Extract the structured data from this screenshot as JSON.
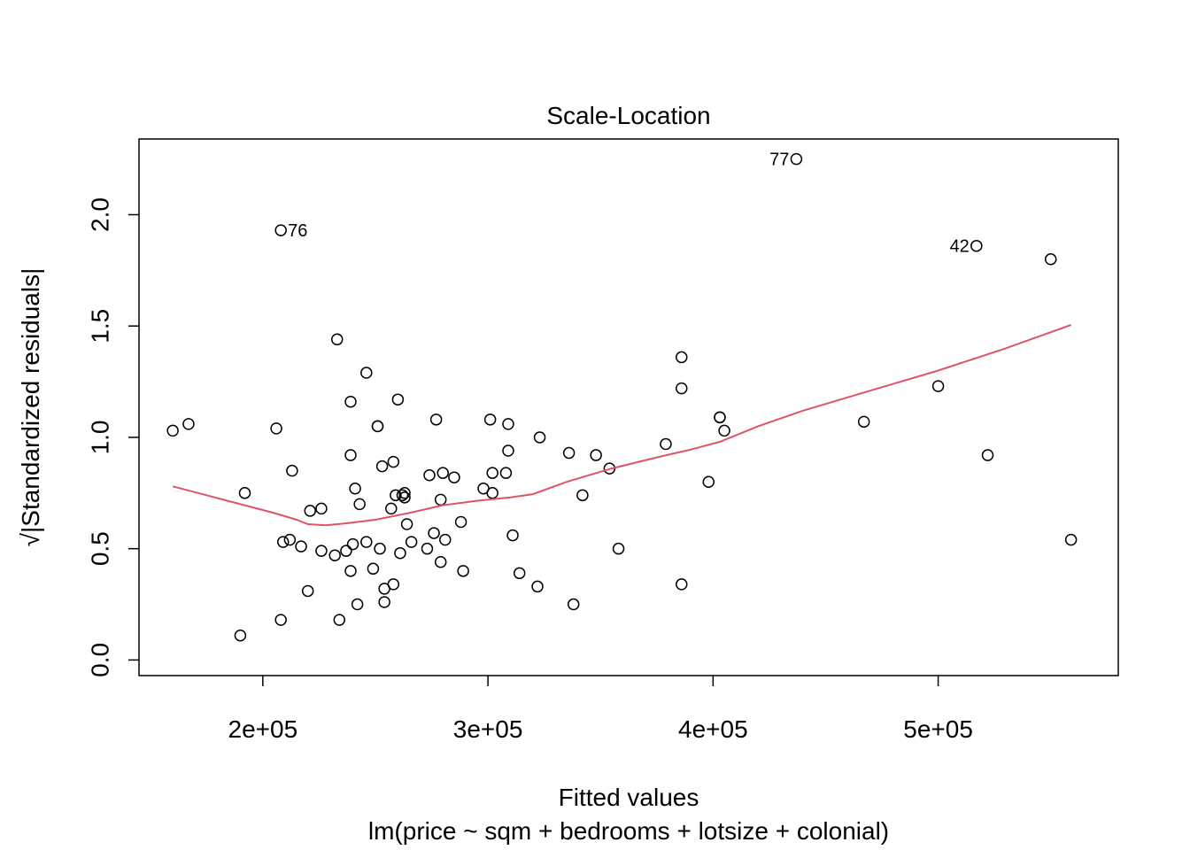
{
  "chart_data": {
    "type": "scatter",
    "title": "Scale-Location",
    "xlabel": "Fitted values",
    "xlabel_sub": "lm(price ~ sqm + bedrooms + lotsize + colonial)",
    "ylabel": "Standardized residuals",
    "ylabel_prefix": "√|",
    "ylabel_suffix": "|",
    "xlim": [
      145000,
      580000
    ],
    "ylim": [
      -0.07,
      2.34
    ],
    "x_ticks": [
      200000,
      300000,
      400000,
      500000
    ],
    "x_tick_labels": [
      "2e+05",
      "3e+05",
      "4e+05",
      "5e+05"
    ],
    "y_ticks": [
      0.0,
      0.5,
      1.0,
      1.5,
      2.0
    ],
    "y_tick_labels": [
      "0.0",
      "0.5",
      "1.0",
      "1.5",
      "2.0"
    ],
    "grid": false,
    "smooth_color": "#DF536B",
    "point_color": "#000000",
    "points": [
      [
        160000,
        1.03
      ],
      [
        167000,
        1.06
      ],
      [
        192000,
        0.75
      ],
      [
        190000,
        0.11
      ],
      [
        206000,
        1.04
      ],
      [
        208000,
        1.93
      ],
      [
        208000,
        0.18
      ],
      [
        209000,
        0.53
      ],
      [
        212000,
        0.54
      ],
      [
        213000,
        0.85
      ],
      [
        217000,
        0.51
      ],
      [
        220000,
        0.31
      ],
      [
        221000,
        0.67
      ],
      [
        226000,
        0.49
      ],
      [
        226000,
        0.68
      ],
      [
        232000,
        0.47
      ],
      [
        233000,
        1.44
      ],
      [
        234000,
        0.18
      ],
      [
        237000,
        0.49
      ],
      [
        239000,
        0.92
      ],
      [
        239000,
        1.16
      ],
      [
        239000,
        0.4
      ],
      [
        240000,
        0.52
      ],
      [
        241000,
        0.77
      ],
      [
        242000,
        0.25
      ],
      [
        243000,
        0.7
      ],
      [
        246000,
        1.29
      ],
      [
        246000,
        0.53
      ],
      [
        249000,
        0.41
      ],
      [
        251000,
        1.05
      ],
      [
        251000,
        1.05
      ],
      [
        252000,
        0.5
      ],
      [
        253000,
        0.87
      ],
      [
        254000,
        0.26
      ],
      [
        254000,
        0.32
      ],
      [
        257000,
        0.68
      ],
      [
        258000,
        0.89
      ],
      [
        258000,
        0.34
      ],
      [
        259000,
        0.74
      ],
      [
        260000,
        1.17
      ],
      [
        261000,
        0.48
      ],
      [
        262000,
        0.74
      ],
      [
        263000,
        0.75
      ],
      [
        263000,
        0.73
      ],
      [
        264000,
        0.61
      ],
      [
        266000,
        0.53
      ],
      [
        273000,
        0.5
      ],
      [
        274000,
        0.83
      ],
      [
        276000,
        0.57
      ],
      [
        277000,
        1.08
      ],
      [
        279000,
        0.44
      ],
      [
        279000,
        0.72
      ],
      [
        280000,
        0.84
      ],
      [
        281000,
        0.54
      ],
      [
        285000,
        0.82
      ],
      [
        288000,
        0.62
      ],
      [
        289000,
        0.4
      ],
      [
        298000,
        0.77
      ],
      [
        301000,
        1.08
      ],
      [
        302000,
        0.84
      ],
      [
        302000,
        0.75
      ],
      [
        308000,
        0.84
      ],
      [
        309000,
        0.94
      ],
      [
        309000,
        1.06
      ],
      [
        311000,
        0.56
      ],
      [
        314000,
        0.39
      ],
      [
        322000,
        0.33
      ],
      [
        323000,
        1.0
      ],
      [
        336000,
        0.93
      ],
      [
        338000,
        0.25
      ],
      [
        342000,
        0.74
      ],
      [
        348000,
        0.92
      ],
      [
        354000,
        0.86
      ],
      [
        358000,
        0.5
      ],
      [
        379000,
        0.97
      ],
      [
        386000,
        1.36
      ],
      [
        386000,
        1.22
      ],
      [
        386000,
        0.34
      ],
      [
        398000,
        0.8
      ],
      [
        403000,
        1.09
      ],
      [
        403000,
        1.09
      ],
      [
        405000,
        1.03
      ],
      [
        437000,
        2.25
      ],
      [
        467000,
        1.07
      ],
      [
        500000,
        1.23
      ],
      [
        517000,
        1.86
      ],
      [
        522000,
        0.92
      ],
      [
        550000,
        1.8
      ],
      [
        559000,
        0.54
      ]
    ],
    "point_labels": [
      {
        "x": 208000,
        "y": 1.93,
        "text": "76",
        "side": "right"
      },
      {
        "x": 437000,
        "y": 2.25,
        "text": "77",
        "side": "left"
      },
      {
        "x": 517000,
        "y": 1.86,
        "text": "42",
        "side": "left"
      }
    ],
    "smooth": [
      [
        160000,
        0.78
      ],
      [
        175000,
        0.74
      ],
      [
        190000,
        0.7
      ],
      [
        205000,
        0.66
      ],
      [
        215000,
        0.63
      ],
      [
        220000,
        0.61
      ],
      [
        228000,
        0.605
      ],
      [
        238000,
        0.615
      ],
      [
        250000,
        0.63
      ],
      [
        265000,
        0.66
      ],
      [
        280000,
        0.695
      ],
      [
        295000,
        0.715
      ],
      [
        310000,
        0.73
      ],
      [
        320000,
        0.745
      ],
      [
        335000,
        0.8
      ],
      [
        355000,
        0.86
      ],
      [
        375000,
        0.91
      ],
      [
        390000,
        0.945
      ],
      [
        403000,
        0.98
      ],
      [
        420000,
        1.05
      ],
      [
        440000,
        1.12
      ],
      [
        470000,
        1.21
      ],
      [
        500000,
        1.3
      ],
      [
        530000,
        1.4
      ],
      [
        559000,
        1.505
      ]
    ]
  }
}
